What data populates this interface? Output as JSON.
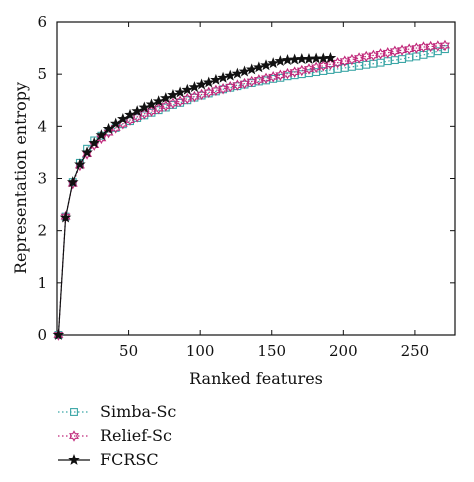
{
  "chart_data": {
    "type": "line",
    "title": "",
    "xlabel": "Ranked features",
    "ylabel": "Representation entropy",
    "xlim": [
      0,
      278
    ],
    "ylim": [
      0,
      6
    ],
    "xticks": [
      50,
      100,
      150,
      200,
      250
    ],
    "yticks": [
      0,
      1,
      2,
      3,
      4,
      5,
      6
    ],
    "grid": false,
    "legend_position": "bottom-left outside",
    "series": [
      {
        "name": "Simba-Sc",
        "color": "#3aa6a6",
        "line_style": "dotted",
        "marker": "square",
        "x": [
          1,
          6,
          11,
          16,
          21,
          26,
          31,
          36,
          41,
          46,
          51,
          56,
          61,
          66,
          71,
          76,
          81,
          86,
          91,
          96,
          101,
          106,
          111,
          116,
          121,
          126,
          131,
          136,
          141,
          146,
          151,
          156,
          161,
          166,
          171,
          176,
          181,
          186,
          191,
          196,
          201,
          206,
          211,
          216,
          221,
          226,
          231,
          236,
          241,
          246,
          251,
          256,
          261,
          266,
          271
        ],
        "y": [
          0.0,
          2.27,
          2.93,
          3.3,
          3.57,
          3.73,
          3.82,
          3.9,
          3.97,
          4.04,
          4.1,
          4.16,
          4.21,
          4.26,
          4.31,
          4.36,
          4.41,
          4.45,
          4.5,
          4.55,
          4.59,
          4.63,
          4.67,
          4.71,
          4.74,
          4.77,
          4.8,
          4.83,
          4.86,
          4.88,
          4.91,
          4.93,
          4.96,
          4.98,
          5.0,
          5.02,
          5.04,
          5.06,
          5.08,
          5.1,
          5.12,
          5.14,
          5.16,
          5.18,
          5.2,
          5.22,
          5.25,
          5.27,
          5.29,
          5.32,
          5.34,
          5.37,
          5.4,
          5.44,
          5.48
        ]
      },
      {
        "name": "Relief-Sc",
        "color": "#c0287a",
        "line_style": "dotted",
        "marker": "hexagram",
        "x": [
          1,
          6,
          11,
          16,
          21,
          26,
          31,
          36,
          41,
          46,
          51,
          56,
          61,
          66,
          71,
          76,
          81,
          86,
          91,
          96,
          101,
          106,
          111,
          116,
          121,
          126,
          131,
          136,
          141,
          146,
          151,
          156,
          161,
          166,
          171,
          176,
          181,
          186,
          191,
          196,
          201,
          206,
          211,
          216,
          221,
          226,
          231,
          236,
          241,
          246,
          251,
          256,
          261,
          266,
          271
        ],
        "y": [
          0.0,
          2.27,
          2.9,
          3.25,
          3.47,
          3.64,
          3.77,
          3.88,
          3.97,
          4.05,
          4.12,
          4.18,
          4.24,
          4.29,
          4.34,
          4.39,
          4.44,
          4.48,
          4.53,
          4.57,
          4.61,
          4.65,
          4.69,
          4.72,
          4.76,
          4.79,
          4.82,
          4.86,
          4.89,
          4.92,
          4.95,
          4.98,
          5.01,
          5.04,
          5.07,
          5.1,
          5.13,
          5.16,
          5.19,
          5.22,
          5.25,
          5.28,
          5.31,
          5.34,
          5.36,
          5.39,
          5.41,
          5.44,
          5.46,
          5.48,
          5.5,
          5.52,
          5.53,
          5.54,
          5.55
        ]
      },
      {
        "name": "FCRSC",
        "color": "#111111",
        "line_style": "solid",
        "marker": "star",
        "x": [
          1,
          6,
          11,
          16,
          21,
          26,
          31,
          36,
          41,
          46,
          51,
          56,
          61,
          66,
          71,
          76,
          81,
          86,
          91,
          96,
          101,
          106,
          111,
          116,
          121,
          126,
          131,
          136,
          141,
          146,
          151,
          156,
          161,
          166,
          171,
          176,
          181,
          186,
          191
        ],
        "y": [
          0.0,
          2.25,
          2.93,
          3.27,
          3.5,
          3.68,
          3.83,
          3.95,
          4.05,
          4.14,
          4.22,
          4.29,
          4.36,
          4.42,
          4.48,
          4.54,
          4.6,
          4.65,
          4.7,
          4.75,
          4.8,
          4.84,
          4.89,
          4.93,
          4.97,
          5.01,
          5.05,
          5.09,
          5.13,
          5.17,
          5.21,
          5.25,
          5.27,
          5.28,
          5.29,
          5.29,
          5.3,
          5.3,
          5.31
        ]
      }
    ]
  }
}
